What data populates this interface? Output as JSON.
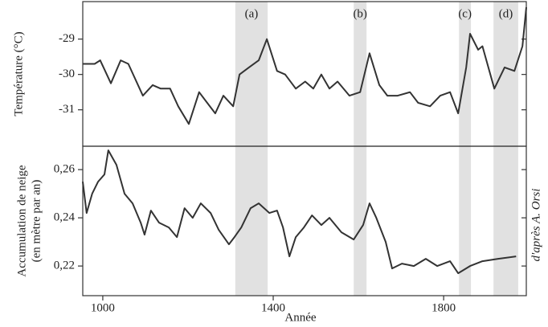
{
  "chart_data": [
    {
      "type": "line",
      "ylabel": "Température (°C)",
      "xlim": [
        953,
        1994
      ],
      "ylim": [
        -32.03,
        -27.94
      ],
      "yticks": [
        -29,
        -30,
        -31
      ],
      "periods": [
        {
          "label": "(a)",
          "start": 1311,
          "end": 1387
        },
        {
          "label": "(b)",
          "start": 1589,
          "end": 1619
        },
        {
          "label": "(c)",
          "start": 1836,
          "end": 1864
        },
        {
          "label": "(d)",
          "start": 1917,
          "end": 1975
        }
      ],
      "x": [
        953,
        981,
        994,
        1019,
        1042,
        1060,
        1094,
        1117,
        1136,
        1158,
        1177,
        1202,
        1226,
        1245,
        1264,
        1283,
        1306,
        1321,
        1343,
        1366,
        1385,
        1409,
        1428,
        1453,
        1475,
        1494,
        1513,
        1532,
        1551,
        1579,
        1604,
        1626,
        1649,
        1668,
        1692,
        1721,
        1740,
        1768,
        1792,
        1815,
        1834,
        1853,
        1862,
        1881,
        1891,
        1919,
        1943,
        1966,
        1985,
        1994
      ],
      "series": [
        {
          "name": "Température",
          "color": "#333333",
          "values": [
            -29.7,
            -29.7,
            -29.6,
            -30.25,
            -29.6,
            -29.7,
            -30.6,
            -30.3,
            -30.4,
            -30.4,
            -30.9,
            -31.4,
            -30.5,
            -30.8,
            -31.1,
            -30.6,
            -30.9,
            -30.0,
            -29.8,
            -29.6,
            -29.0,
            -29.9,
            -30.0,
            -30.4,
            -30.2,
            -30.4,
            -30.0,
            -30.4,
            -30.2,
            -30.6,
            -30.5,
            -29.4,
            -30.3,
            -30.6,
            -30.6,
            -30.5,
            -30.8,
            -30.9,
            -30.6,
            -30.5,
            -31.1,
            -29.8,
            -28.85,
            -29.3,
            -29.2,
            -30.4,
            -29.8,
            -29.9,
            -29.2,
            -28.1
          ]
        }
      ]
    },
    {
      "type": "line",
      "ylabel": "Accumulation de neige (en mètre par an)",
      "xlabel": "Année",
      "xlim": [
        953,
        1994
      ],
      "xticks": [
        1000,
        1400,
        1800
      ],
      "ylim": [
        0.2077,
        0.2697
      ],
      "yticks": [
        {
          "value": 0.26,
          "label": "0,26"
        },
        {
          "value": 0.24,
          "label": "0,24"
        },
        {
          "value": 0.22,
          "label": "0,22"
        }
      ],
      "x": [
        953,
        962,
        975,
        989,
        1004,
        1013,
        1032,
        1051,
        1070,
        1089,
        1098,
        1113,
        1132,
        1155,
        1174,
        1192,
        1211,
        1230,
        1253,
        1272,
        1296,
        1309,
        1325,
        1347,
        1366,
        1391,
        1409,
        1423,
        1438,
        1453,
        1472,
        1491,
        1513,
        1532,
        1560,
        1589,
        1611,
        1626,
        1642,
        1664,
        1679,
        1702,
        1730,
        1758,
        1785,
        1815,
        1834,
        1862,
        1891,
        1928,
        1970
      ],
      "series": [
        {
          "name": "Accumulation",
          "color": "#333333",
          "values": [
            0.255,
            0.242,
            0.25,
            0.255,
            0.258,
            0.268,
            0.262,
            0.25,
            0.246,
            0.238,
            0.233,
            0.243,
            0.238,
            0.236,
            0.232,
            0.244,
            0.24,
            0.246,
            0.242,
            0.235,
            0.229,
            0.232,
            0.236,
            0.244,
            0.246,
            0.242,
            0.243,
            0.236,
            0.224,
            0.232,
            0.236,
            0.241,
            0.237,
            0.24,
            0.234,
            0.231,
            0.237,
            0.246,
            0.24,
            0.23,
            0.219,
            0.221,
            0.22,
            0.223,
            0.22,
            0.222,
            0.217,
            0.22,
            0.222,
            0.223,
            0.224
          ]
        }
      ]
    }
  ],
  "credit": "d'après A. Orsi"
}
